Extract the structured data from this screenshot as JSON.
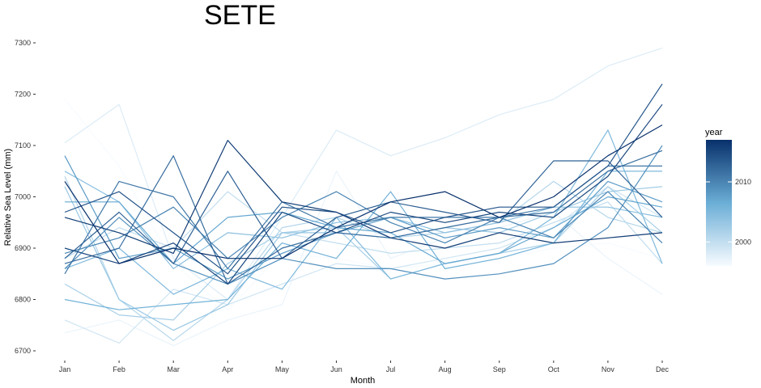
{
  "chart_data": {
    "type": "line",
    "title": "SETE",
    "xlabel": "Month",
    "ylabel": "Relative Sea Level (mm)",
    "categories": [
      "Jan",
      "Feb",
      "Mar",
      "Apr",
      "May",
      "Jun",
      "Jul",
      "Aug",
      "Sep",
      "Oct",
      "Nov",
      "Dec"
    ],
    "ylim": [
      6690,
      7310
    ],
    "yticks": [
      6700,
      6800,
      6900,
      7000,
      7100,
      7200,
      7300
    ],
    "grid": false,
    "legend": {
      "title": "year",
      "position": "right",
      "type": "colorbar",
      "ticks": [
        2000,
        2010
      ],
      "range": [
        1996,
        2017
      ],
      "color_low": "#f7fbff",
      "color_high": "#08306b"
    },
    "series": [
      {
        "year": 1996,
        "values": [
          7190,
          7060,
          6870,
          6780,
          6890,
          6880,
          6860,
          6870,
          6880,
          6900,
          6910,
          6880
        ]
      },
      {
        "year": 1997,
        "values": [
          6735,
          6760,
          6710,
          6760,
          6790,
          7050,
          6880,
          6920,
          6940,
          6970,
          6880,
          6810
        ]
      },
      {
        "year": 1998,
        "values": [
          7105,
          7180,
          6880,
          6800,
          6960,
          7130,
          7080,
          7115,
          7160,
          7190,
          7255,
          7290
        ]
      },
      {
        "year": 1999,
        "values": [
          6760,
          6715,
          6820,
          6790,
          6830,
          6870,
          6860,
          6880,
          6900,
          6940,
          7020,
          6960
        ]
      },
      {
        "year": 2000,
        "values": [
          6880,
          6940,
          6900,
          7010,
          6930,
          6910,
          6890,
          6900,
          6910,
          6950,
          6990,
          6870
        ]
      },
      {
        "year": 2001,
        "values": [
          7040,
          6800,
          6720,
          6800,
          6940,
          6960,
          6920,
          6930,
          6950,
          7030,
          6960,
          6930
        ]
      },
      {
        "year": 2002,
        "values": [
          6830,
          6770,
          6760,
          6870,
          6930,
          6940,
          6840,
          6870,
          6890,
          6910,
          7020,
          6930
        ]
      },
      {
        "year": 2003,
        "values": [
          7020,
          6800,
          6740,
          6790,
          6930,
          6930,
          6920,
          6940,
          6930,
          6970,
          7010,
          7020
        ]
      },
      {
        "year": 2004,
        "values": [
          7050,
          6990,
          6860,
          6930,
          6920,
          6950,
          6960,
          6930,
          6950,
          6980,
          6980,
          6960
        ]
      },
      {
        "year": 2005,
        "values": [
          6860,
          6900,
          6810,
          6860,
          6820,
          6960,
          6840,
          6870,
          6890,
          6960,
          7130,
          6870
        ]
      },
      {
        "year": 2006,
        "values": [
          6800,
          6780,
          6790,
          6800,
          6910,
          6880,
          7010,
          6860,
          6880,
          6910,
          7050,
          7050
        ]
      },
      {
        "year": 2007,
        "values": [
          6990,
          6990,
          6870,
          6960,
          6970,
          6940,
          6930,
          6870,
          6890,
          6940,
          7000,
          6980
        ]
      },
      {
        "year": 2008,
        "values": [
          7080,
          6880,
          6900,
          6840,
          6890,
          6930,
          6960,
          6920,
          6940,
          6920,
          7030,
          6990
        ]
      },
      {
        "year": 2009,
        "values": [
          6860,
          6960,
          6870,
          6830,
          6880,
          6860,
          6860,
          6840,
          6850,
          6870,
          6940,
          7100
        ]
      },
      {
        "year": 2010,
        "values": [
          6890,
          6920,
          6980,
          6880,
          6960,
          7010,
          6950,
          6910,
          6960,
          6920,
          7010,
          6910
        ]
      },
      {
        "year": 2011,
        "values": [
          6850,
          7030,
          7000,
          6860,
          6990,
          6940,
          6960,
          6960,
          6960,
          6980,
          7060,
          7060
        ]
      },
      {
        "year": 2012,
        "values": [
          6870,
          6900,
          7080,
          6830,
          6900,
          6930,
          6920,
          6940,
          6960,
          6970,
          7050,
          7090
        ]
      },
      {
        "year": 2013,
        "values": [
          6880,
          6970,
          6870,
          7050,
          6880,
          6960,
          6990,
          6970,
          6950,
          7070,
          7070,
          6960
        ]
      },
      {
        "year": 2014,
        "values": [
          6970,
          7010,
          6930,
          6850,
          6980,
          6970,
          6930,
          6960,
          6980,
          6980,
          7060,
          7220
        ]
      },
      {
        "year": 2015,
        "values": [
          6900,
          6870,
          6910,
          6830,
          6970,
          6930,
          6970,
          6950,
          6970,
          6960,
          7040,
          7180
        ]
      },
      {
        "year": 2016,
        "values": [
          6960,
          6930,
          6890,
          7110,
          6990,
          6970,
          6920,
          6900,
          6930,
          6910,
          6920,
          6930
        ]
      },
      {
        "year": 2017,
        "values": [
          7030,
          6870,
          6900,
          6880,
          6880,
          6940,
          6990,
          7010,
          6960,
          7000,
          7080,
          7140
        ]
      }
    ]
  }
}
